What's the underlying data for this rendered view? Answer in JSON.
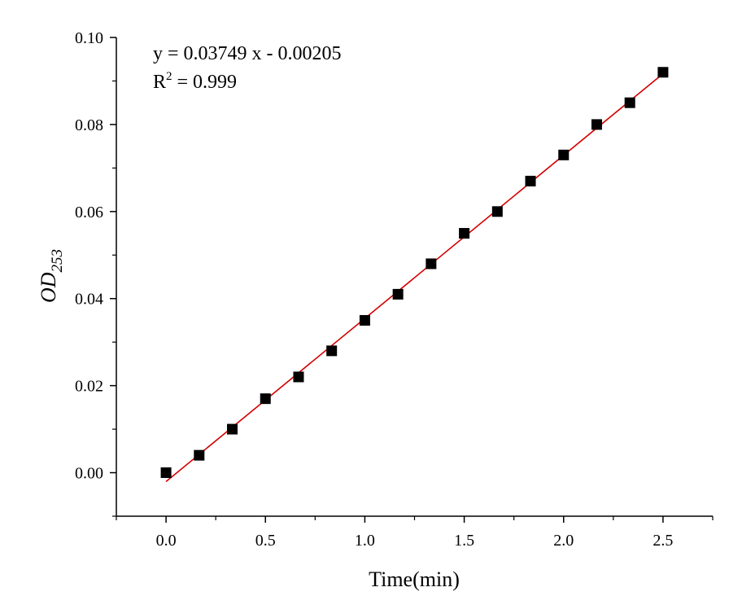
{
  "chart_data": {
    "type": "scatter",
    "title": "",
    "xlabel": "Time(min)",
    "ylabel": {
      "main": "OD",
      "sub": "253"
    },
    "xlim": [
      -0.25,
      2.75
    ],
    "ylim": [
      -0.01,
      0.1
    ],
    "x_ticks": [
      0.0,
      0.5,
      1.0,
      1.5,
      2.0,
      2.5
    ],
    "x_tick_labels": [
      "0.0",
      "0.5",
      "1.0",
      "1.5",
      "2.0",
      "2.5"
    ],
    "y_ticks": [
      0.0,
      0.02,
      0.04,
      0.06,
      0.08,
      0.1
    ],
    "y_tick_labels": [
      "0.00",
      "0.02",
      "0.04",
      "0.06",
      "0.08",
      "0.10"
    ],
    "grid": false,
    "series": [
      {
        "marker": "square",
        "color": "#000000",
        "x": [
          0.0,
          0.1667,
          0.3333,
          0.5,
          0.6667,
          0.8333,
          1.0,
          1.1667,
          1.3333,
          1.5,
          1.6667,
          1.8333,
          2.0,
          2.1667,
          2.3333,
          2.5
        ],
        "y": [
          0.0,
          0.004,
          0.01,
          0.017,
          0.022,
          0.028,
          0.035,
          0.041,
          0.048,
          0.055,
          0.06,
          0.067,
          0.073,
          0.08,
          0.085,
          0.092
        ]
      }
    ],
    "fit": {
      "color": "#d40000",
      "slope": 0.03749,
      "intercept": -0.00205,
      "x_range": [
        0.0,
        2.5
      ]
    },
    "annotations": {
      "equation": "y = 0.03749 x - 0.00205",
      "r2_label": "R",
      "r2_exp": "2",
      "r2_value": " = 0.999"
    }
  }
}
